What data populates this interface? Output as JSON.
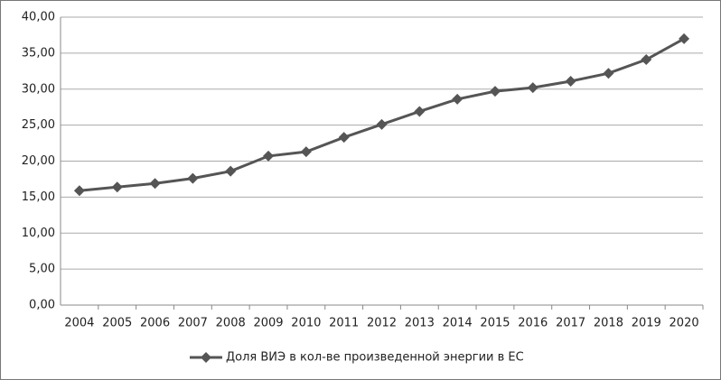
{
  "chart_data": {
    "type": "line",
    "categories": [
      "2004",
      "2005",
      "2006",
      "2007",
      "2008",
      "2009",
      "2010",
      "2011",
      "2012",
      "2013",
      "2014",
      "2015",
      "2016",
      "2017",
      "2018",
      "2019",
      "2020"
    ],
    "series": [
      {
        "name": "Доля ВИЭ в кол-ве произведенной энергии в ЕС",
        "color": "#555555",
        "values": [
          15.9,
          16.4,
          16.9,
          17.6,
          18.6,
          20.7,
          21.3,
          23.3,
          25.1,
          26.9,
          28.6,
          29.7,
          30.2,
          31.1,
          32.2,
          34.1,
          37.0
        ]
      }
    ],
    "ylim": [
      0,
      40
    ],
    "yticks": [
      {
        "value": 0,
        "label": "0,00"
      },
      {
        "value": 5,
        "label": "5,00"
      },
      {
        "value": 10,
        "label": "10,00"
      },
      {
        "value": 15,
        "label": "15,00"
      },
      {
        "value": 20,
        "label": "20,00"
      },
      {
        "value": 25,
        "label": "25,00"
      },
      {
        "value": 30,
        "label": "30,00"
      },
      {
        "value": 35,
        "label": "35,00"
      },
      {
        "value": 40,
        "label": "40,00"
      }
    ],
    "grid": true,
    "legend": "bottom"
  }
}
